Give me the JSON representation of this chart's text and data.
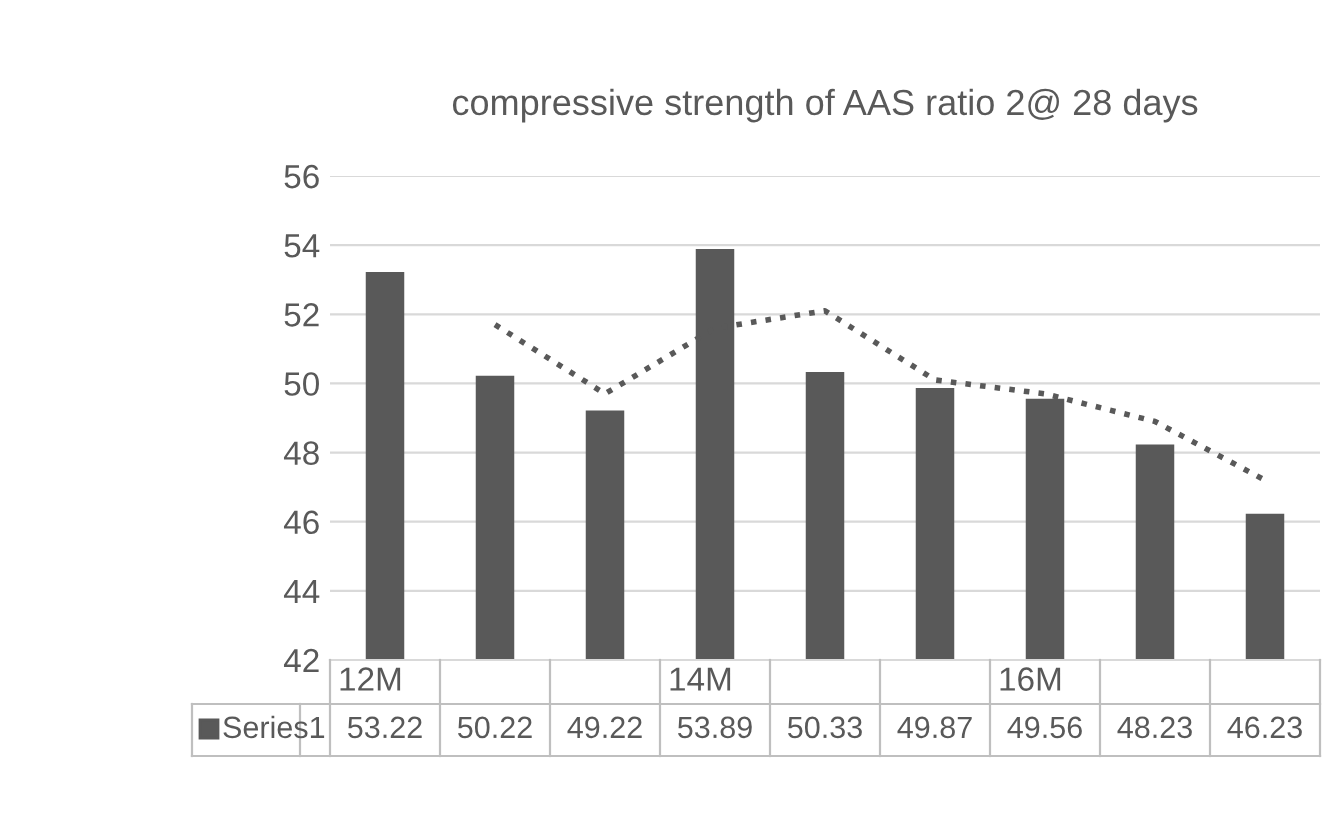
{
  "chart_data": {
    "type": "bar",
    "title": "compressive strength of AAS ratio 2@ 28 days",
    "categories": [
      "12M",
      null,
      null,
      "14M",
      null,
      null,
      "16M",
      null,
      null
    ],
    "series": [
      {
        "name": "Series1",
        "color": "#595959",
        "values": [
          53.22,
          50.22,
          49.22,
          53.89,
          50.33,
          49.87,
          49.56,
          48.23,
          46.23
        ],
        "value_labels": [
          "53.22",
          "50.22",
          "49.22",
          "53.89",
          "50.33",
          "49.87",
          "49.56",
          "48.23",
          "46.23"
        ]
      },
      {
        "type": "line",
        "color": "#595959",
        "line_style": "dotted",
        "values": [
          null,
          51.7,
          49.7,
          51.6,
          52.1,
          50.1,
          49.7,
          48.9,
          47.2
        ]
      }
    ],
    "ylim": [
      42,
      56
    ],
    "yticks": [
      42,
      44,
      46,
      48,
      50,
      52,
      54,
      56
    ],
    "grid": "y",
    "legend": "bottom"
  }
}
